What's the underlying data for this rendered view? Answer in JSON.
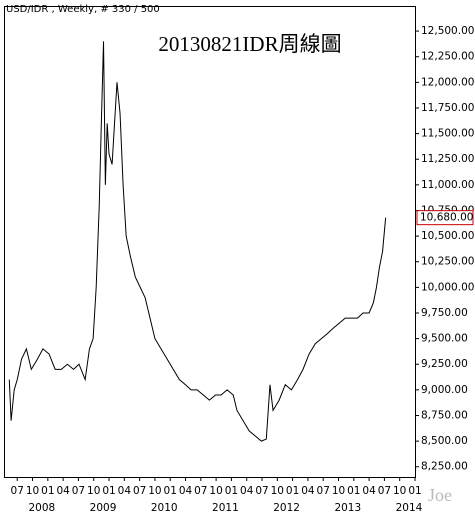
{
  "chart_data": {
    "type": "line",
    "header": "USD/IDR , Weekly, # 330 / 500",
    "title": "20130821IDR周線圖",
    "watermark": "Joe",
    "color": "#000000",
    "grid": false,
    "x": [
      2007.37,
      2007.4,
      2007.45,
      2007.5,
      2007.57,
      2007.65,
      2007.73,
      2007.83,
      2007.92,
      2008.02,
      2008.12,
      2008.22,
      2008.32,
      2008.42,
      2008.51,
      2008.61,
      2008.68,
      2008.74,
      2008.79,
      2008.84,
      2008.87,
      2008.91,
      2008.94,
      2008.97,
      2009.0,
      2009.05,
      2009.1,
      2009.13,
      2009.18,
      2009.23,
      2009.28,
      2009.35,
      2009.43,
      2009.51,
      2009.59,
      2009.67,
      2009.75,
      2009.85,
      2009.95,
      2010.05,
      2010.15,
      2010.25,
      2010.34,
      2010.44,
      2010.54,
      2010.64,
      2010.74,
      2010.83,
      2010.93,
      2011.03,
      2011.09,
      2011.19,
      2011.29,
      2011.39,
      2011.49,
      2011.57,
      2011.63,
      2011.68,
      2011.78,
      2011.88,
      2011.98,
      2012.08,
      2012.17,
      2012.27,
      2012.37,
      2012.47,
      2012.57,
      2012.66,
      2012.76,
      2012.86,
      2012.96,
      2013.06,
      2013.15,
      2013.25,
      2013.32,
      2013.37,
      2013.42,
      2013.47,
      2013.52
    ],
    "series": [
      {
        "name": "USD/IDR",
        "values": [
          9100,
          8700,
          9000,
          9100,
          9300,
          9400,
          9200,
          9300,
          9400,
          9350,
          9200,
          9200,
          9250,
          9200,
          9250,
          9100,
          9400,
          9500,
          10000,
          10800,
          11500,
          12400,
          11000,
          11600,
          11300,
          11200,
          11700,
          12000,
          11700,
          11000,
          10500,
          10300,
          10100,
          10000,
          9900,
          9700,
          9500,
          9400,
          9300,
          9200,
          9100,
          9050,
          9000,
          9000,
          8950,
          8900,
          8950,
          8950,
          9000,
          8950,
          8800,
          8700,
          8600,
          8550,
          8500,
          8520,
          9050,
          8800,
          8900,
          9050,
          9000,
          9100,
          9200,
          9350,
          9450,
          9500,
          9550,
          9600,
          9650,
          9700,
          9700,
          9700,
          9750,
          9750,
          9850,
          10000,
          10200,
          10350,
          10680
        ]
      }
    ],
    "last_price": {
      "value": 10680,
      "label": "10,680.00"
    },
    "xlim": [
      2007.3,
      2014.0
    ],
    "xticks": [
      {
        "value": 2007.5,
        "label": "07"
      },
      {
        "value": 2007.75,
        "label": "10"
      },
      {
        "value": 2008,
        "label": "01"
      },
      {
        "value": 2008.25,
        "label": "04"
      },
      {
        "value": 2008.5,
        "label": "07"
      },
      {
        "value": 2008.75,
        "label": "10"
      },
      {
        "value": 2009,
        "label": "01"
      },
      {
        "value": 2009.25,
        "label": "04"
      },
      {
        "value": 2009.5,
        "label": "07"
      },
      {
        "value": 2009.75,
        "label": "10"
      },
      {
        "value": 2010,
        "label": "01"
      },
      {
        "value": 2010.25,
        "label": "04"
      },
      {
        "value": 2010.5,
        "label": "07"
      },
      {
        "value": 2010.75,
        "label": "10"
      },
      {
        "value": 2011,
        "label": "01"
      },
      {
        "value": 2011.25,
        "label": "04"
      },
      {
        "value": 2011.5,
        "label": "07"
      },
      {
        "value": 2011.75,
        "label": "10"
      },
      {
        "value": 2012,
        "label": "01"
      },
      {
        "value": 2012.25,
        "label": "04"
      },
      {
        "value": 2012.5,
        "label": "07"
      },
      {
        "value": 2012.75,
        "label": "10"
      },
      {
        "value": 2013,
        "label": "01"
      },
      {
        "value": 2013.25,
        "label": "04"
      },
      {
        "value": 2013.5,
        "label": "07"
      },
      {
        "value": 2013.75,
        "label": "10"
      },
      {
        "value": 2014,
        "label": "01"
      }
    ],
    "year_labels": [
      2008,
      2009,
      2010,
      2011,
      2012,
      2013,
      2014
    ],
    "ylim": [
      8150,
      12735
    ],
    "yticks": [
      {
        "value": 8250,
        "label": "8,250.00"
      },
      {
        "value": 8500,
        "label": "8,500.00"
      },
      {
        "value": 8750,
        "label": "8,750.00"
      },
      {
        "value": 9000,
        "label": "9,000.00"
      },
      {
        "value": 9250,
        "label": "9,250.00"
      },
      {
        "value": 9500,
        "label": "9,500.00"
      },
      {
        "value": 9750,
        "label": "9,750.00"
      },
      {
        "value": 10000,
        "label": "10,000.00"
      },
      {
        "value": 10250,
        "label": "10,250.00"
      },
      {
        "value": 10500,
        "label": "10,500.00"
      },
      {
        "value": 10750,
        "label": "10,750.00"
      },
      {
        "value": 11000,
        "label": "11,000.00"
      },
      {
        "value": 11250,
        "label": "11,250.00"
      },
      {
        "value": 11500,
        "label": "11,500.00"
      },
      {
        "value": 11750,
        "label": "11,750.00"
      },
      {
        "value": 12000,
        "label": "12,000.00"
      },
      {
        "value": 12250,
        "label": "12,250.00"
      },
      {
        "value": 12500,
        "label": "12,500.00"
      }
    ]
  }
}
